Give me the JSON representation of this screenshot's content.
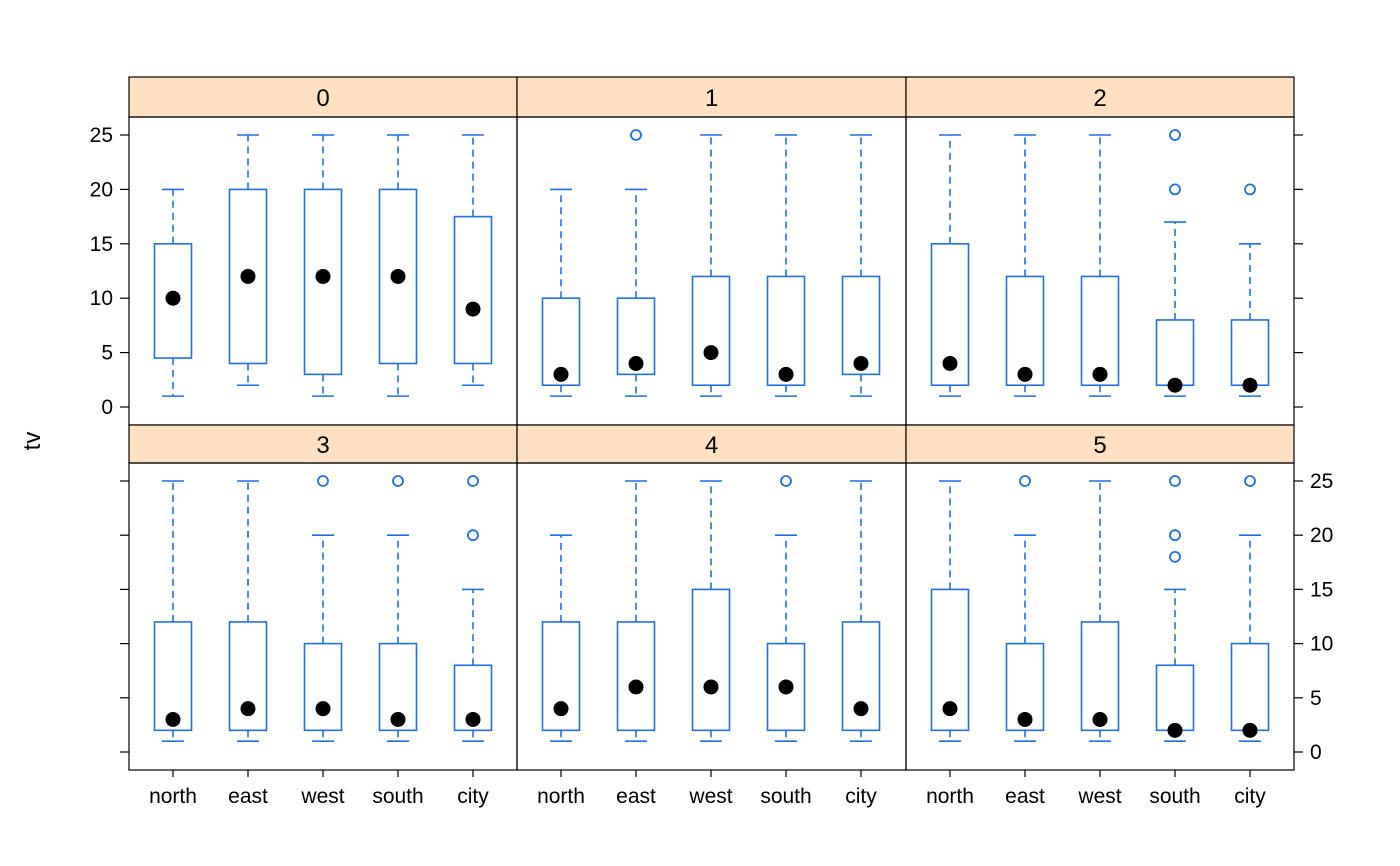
{
  "chart_data": {
    "type": "boxplot",
    "title": "",
    "xlabel": "",
    "ylabel": "tv",
    "ylim": [
      0,
      25
    ],
    "yticks": [
      0,
      5,
      10,
      15,
      20,
      25
    ],
    "categories": [
      "north",
      "east",
      "west",
      "south",
      "city"
    ],
    "layout": {
      "columns": 3,
      "rows": 2
    },
    "colors": {
      "box": "#1f6fe8",
      "median_dot": "#000000",
      "strip_fill": "#ffe0c0",
      "frame": "#000000"
    },
    "panels": [
      {
        "label": "0",
        "boxes": [
          {
            "category": "north",
            "whisker_low": 1,
            "q1": 4.5,
            "median": 10,
            "q3": 15,
            "whisker_high": 20,
            "outliers": []
          },
          {
            "category": "east",
            "whisker_low": 2,
            "q1": 4,
            "median": 12,
            "q3": 20,
            "whisker_high": 25,
            "outliers": []
          },
          {
            "category": "west",
            "whisker_low": 1,
            "q1": 3,
            "median": 12,
            "q3": 20,
            "whisker_high": 25,
            "outliers": []
          },
          {
            "category": "south",
            "whisker_low": 1,
            "q1": 4,
            "median": 12,
            "q3": 20,
            "whisker_high": 25,
            "outliers": []
          },
          {
            "category": "city",
            "whisker_low": 2,
            "q1": 4,
            "median": 9,
            "q3": 17.5,
            "whisker_high": 25,
            "outliers": []
          }
        ]
      },
      {
        "label": "1",
        "boxes": [
          {
            "category": "north",
            "whisker_low": 1,
            "q1": 2,
            "median": 3,
            "q3": 10,
            "whisker_high": 20,
            "outliers": []
          },
          {
            "category": "east",
            "whisker_low": 1,
            "q1": 3,
            "median": 4,
            "q3": 10,
            "whisker_high": 20,
            "outliers": [
              25
            ]
          },
          {
            "category": "west",
            "whisker_low": 1,
            "q1": 2,
            "median": 5,
            "q3": 12,
            "whisker_high": 25,
            "outliers": []
          },
          {
            "category": "south",
            "whisker_low": 1,
            "q1": 2,
            "median": 3,
            "q3": 12,
            "whisker_high": 25,
            "outliers": []
          },
          {
            "category": "city",
            "whisker_low": 1,
            "q1": 3,
            "median": 4,
            "q3": 12,
            "whisker_high": 25,
            "outliers": []
          }
        ]
      },
      {
        "label": "2",
        "boxes": [
          {
            "category": "north",
            "whisker_low": 1,
            "q1": 2,
            "median": 4,
            "q3": 15,
            "whisker_high": 25,
            "outliers": []
          },
          {
            "category": "east",
            "whisker_low": 1,
            "q1": 2,
            "median": 3,
            "q3": 12,
            "whisker_high": 25,
            "outliers": []
          },
          {
            "category": "west",
            "whisker_low": 1,
            "q1": 2,
            "median": 3,
            "q3": 12,
            "whisker_high": 25,
            "outliers": []
          },
          {
            "category": "south",
            "whisker_low": 1,
            "q1": 2,
            "median": 2,
            "q3": 8,
            "whisker_high": 17,
            "outliers": [
              20,
              25
            ]
          },
          {
            "category": "city",
            "whisker_low": 1,
            "q1": 2,
            "median": 2,
            "q3": 8,
            "whisker_high": 15,
            "outliers": [
              20
            ]
          }
        ]
      },
      {
        "label": "3",
        "boxes": [
          {
            "category": "north",
            "whisker_low": 1,
            "q1": 2,
            "median": 3,
            "q3": 12,
            "whisker_high": 25,
            "outliers": []
          },
          {
            "category": "east",
            "whisker_low": 1,
            "q1": 2,
            "median": 4,
            "q3": 12,
            "whisker_high": 25,
            "outliers": []
          },
          {
            "category": "west",
            "whisker_low": 1,
            "q1": 2,
            "median": 4,
            "q3": 10,
            "whisker_high": 20,
            "outliers": [
              25
            ]
          },
          {
            "category": "south",
            "whisker_low": 1,
            "q1": 2,
            "median": 3,
            "q3": 10,
            "whisker_high": 20,
            "outliers": [
              25
            ]
          },
          {
            "category": "city",
            "whisker_low": 1,
            "q1": 2,
            "median": 3,
            "q3": 8,
            "whisker_high": 15,
            "outliers": [
              20,
              25
            ]
          }
        ]
      },
      {
        "label": "4",
        "boxes": [
          {
            "category": "north",
            "whisker_low": 1,
            "q1": 2,
            "median": 4,
            "q3": 12,
            "whisker_high": 20,
            "outliers": []
          },
          {
            "category": "east",
            "whisker_low": 1,
            "q1": 2,
            "median": 6,
            "q3": 12,
            "whisker_high": 25,
            "outliers": []
          },
          {
            "category": "west",
            "whisker_low": 1,
            "q1": 2,
            "median": 6,
            "q3": 15,
            "whisker_high": 25,
            "outliers": []
          },
          {
            "category": "south",
            "whisker_low": 1,
            "q1": 2,
            "median": 6,
            "q3": 10,
            "whisker_high": 20,
            "outliers": [
              25
            ]
          },
          {
            "category": "city",
            "whisker_low": 1,
            "q1": 2,
            "median": 4,
            "q3": 12,
            "whisker_high": 25,
            "outliers": []
          }
        ]
      },
      {
        "label": "5",
        "boxes": [
          {
            "category": "north",
            "whisker_low": 1,
            "q1": 2,
            "median": 4,
            "q3": 15,
            "whisker_high": 25,
            "outliers": []
          },
          {
            "category": "east",
            "whisker_low": 1,
            "q1": 2,
            "median": 3,
            "q3": 10,
            "whisker_high": 20,
            "outliers": [
              25
            ]
          },
          {
            "category": "west",
            "whisker_low": 1,
            "q1": 2,
            "median": 3,
            "q3": 12,
            "whisker_high": 25,
            "outliers": []
          },
          {
            "category": "south",
            "whisker_low": 1,
            "q1": 2,
            "median": 2,
            "q3": 8,
            "whisker_high": 15,
            "outliers": [
              18,
              20,
              25
            ]
          },
          {
            "category": "city",
            "whisker_low": 1,
            "q1": 2,
            "median": 2,
            "q3": 10,
            "whisker_high": 20,
            "outliers": [
              25
            ]
          }
        ]
      }
    ]
  }
}
